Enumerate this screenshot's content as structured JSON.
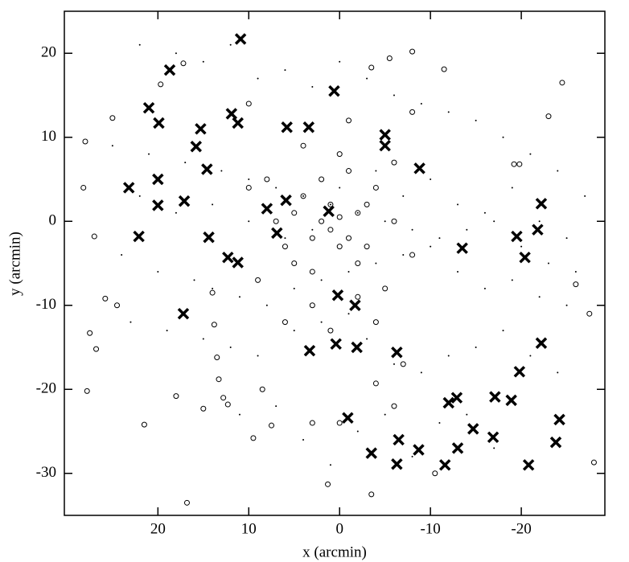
{
  "chart_data": {
    "type": "scatter",
    "x_label": "x (arcmin)",
    "y_label": "y (arcmin)",
    "xlim": [
      30.3,
      -29.2
    ],
    "ylim": [
      -35,
      25
    ],
    "xticks": [
      20,
      10,
      0,
      -10,
      -20
    ],
    "yticks": [
      20,
      10,
      0,
      -10,
      -20,
      -30
    ],
    "series": [
      {
        "marker": "dot",
        "color": "#000000",
        "x": [
          22,
          18,
          15,
          12,
          9,
          6,
          3,
          0,
          -3,
          -6,
          -9,
          -12,
          -15,
          -18,
          -21,
          -24,
          -27,
          25,
          21,
          17,
          13,
          10,
          7,
          4,
          1,
          -2,
          -5,
          -8,
          -11,
          -14,
          -17,
          -20,
          -23,
          -26,
          24,
          20,
          16,
          14,
          11,
          8,
          5,
          2,
          -1,
          -4,
          -7,
          -10,
          -13,
          -16,
          -19,
          -22,
          -25,
          23,
          19,
          15,
          12,
          9,
          5,
          2,
          -1,
          -3,
          -6,
          -9,
          -12,
          -15,
          -18,
          -21,
          -24,
          22,
          18,
          14,
          10,
          6,
          3,
          0,
          -4,
          -7,
          -10,
          -13,
          -16,
          -19,
          -22,
          -25,
          11,
          7,
          4,
          1,
          -2,
          -5,
          -8,
          -11,
          -14,
          -17
        ],
        "y": [
          21,
          20,
          19,
          21,
          17,
          18,
          16,
          19,
          17,
          15,
          14,
          13,
          12,
          10,
          8,
          6,
          3,
          9,
          8,
          7,
          6,
          5,
          4,
          3,
          2,
          1,
          0,
          -1,
          -2,
          -1,
          0,
          -3,
          -5,
          -6,
          -4,
          -6,
          -7,
          -8,
          -9,
          -10,
          -8,
          -7,
          -6,
          -5,
          -4,
          -3,
          -6,
          -8,
          -7,
          -9,
          -10,
          -12,
          -13,
          -14,
          -15,
          -16,
          -13,
          -12,
          -11,
          -14,
          -17,
          -18,
          -16,
          -15,
          -13,
          -16,
          -18,
          3,
          1,
          2,
          0,
          -2,
          -1,
          4,
          6,
          3,
          5,
          2,
          1,
          4,
          0,
          -2,
          -23,
          -22,
          -26,
          -29,
          -25,
          -23,
          -28,
          -24,
          -23,
          -27
        ]
      },
      {
        "marker": "circle",
        "color": "#000000",
        "x": [
          -24.5,
          28,
          28.2,
          27,
          27.5,
          26.8,
          27.8,
          21.5,
          16.8,
          18,
          15,
          13.3,
          13.5,
          12.8,
          12.3,
          9.5,
          7.5,
          8.5,
          1.3,
          -3.5,
          -4,
          -10.5,
          -28,
          -27.5,
          -26,
          -19.8,
          -19.2,
          -23,
          -8,
          -5.5,
          -3.5,
          -11.5,
          17.2,
          19.7,
          25,
          25.8,
          24.5,
          14,
          13.8,
          5,
          3,
          2,
          1,
          0,
          -1,
          -2,
          -3,
          4,
          6,
          -4,
          2,
          -1,
          3,
          -2,
          7,
          -6,
          1,
          0,
          5,
          -3,
          8,
          -5,
          3,
          -8,
          9,
          10,
          -6,
          0,
          4,
          -2,
          6,
          1,
          -4,
          -8,
          -1,
          10,
          -7,
          3,
          0,
          -6
        ],
        "y": [
          16.5,
          9.5,
          4,
          -1.8,
          -13.3,
          -15.2,
          -20.2,
          -24.2,
          -33.5,
          -20.8,
          -22.3,
          -18.8,
          -16.2,
          -21,
          -21.8,
          -25.8,
          -24.3,
          -20,
          -31.3,
          -32.5,
          -19.3,
          -30,
          -28.7,
          -11,
          -7.5,
          6.8,
          6.8,
          12.5,
          20.2,
          19.4,
          18.3,
          18.1,
          18.8,
          16.3,
          12.3,
          -9.2,
          -10,
          -8.5,
          -12.3,
          -5,
          -2,
          0,
          -1,
          0.5,
          -2,
          1,
          -3,
          3,
          -3,
          4,
          5,
          6,
          -6,
          -5,
          0,
          0,
          2,
          -3,
          1,
          2,
          5,
          -8,
          -10,
          -4,
          -7,
          4,
          7,
          8,
          9,
          -9,
          -12,
          -13,
          -12,
          13,
          12,
          14,
          -17,
          -24,
          -24,
          -22
        ]
      },
      {
        "marker": "cross",
        "color": "#000000",
        "x": [
          10.9,
          18.7,
          21.0,
          19.9,
          0.6,
          11.9,
          11.2,
          15.3,
          15.8,
          5.8,
          3.4,
          -5.0,
          -5.0,
          -8.8,
          14.6,
          20.0,
          23.2,
          20.0,
          17.1,
          5.9,
          8.0,
          1.2,
          6.9,
          22.1,
          14.4,
          12.3,
          11.2,
          -22.2,
          -21.8,
          -19.5,
          -20.4,
          -13.5,
          0.2,
          -1.7,
          17.2,
          3.3,
          0.4,
          -1.9,
          -6.3,
          -22.2,
          -19.8,
          -12.9,
          -12.0,
          -17.1,
          -18.9,
          -14.7,
          -16.9,
          -24.2,
          -23.8,
          -13.0,
          -11.6,
          -20.8,
          -8.7,
          -6.5,
          -6.3,
          -3.5,
          -0.9
        ],
        "y": [
          21.7,
          18.0,
          13.5,
          11.7,
          15.5,
          12.8,
          11.7,
          11.0,
          8.9,
          11.2,
          11.2,
          10.3,
          9.0,
          6.3,
          6.2,
          5.0,
          4.0,
          1.9,
          2.4,
          2.5,
          1.5,
          1.2,
          -1.4,
          -1.8,
          -1.9,
          -4.3,
          -4.9,
          2.1,
          -1.0,
          -1.8,
          -4.3,
          -3.2,
          -8.8,
          -10.0,
          -11.0,
          -15.4,
          -14.6,
          -15.0,
          -15.6,
          -14.5,
          -17.9,
          -21.0,
          -21.6,
          -20.9,
          -21.3,
          -24.7,
          -25.7,
          -23.6,
          -26.3,
          -27.0,
          -29.0,
          -29.0,
          -27.2,
          -26.0,
          -28.9,
          -27.6,
          -23.4
        ]
      }
    ]
  }
}
